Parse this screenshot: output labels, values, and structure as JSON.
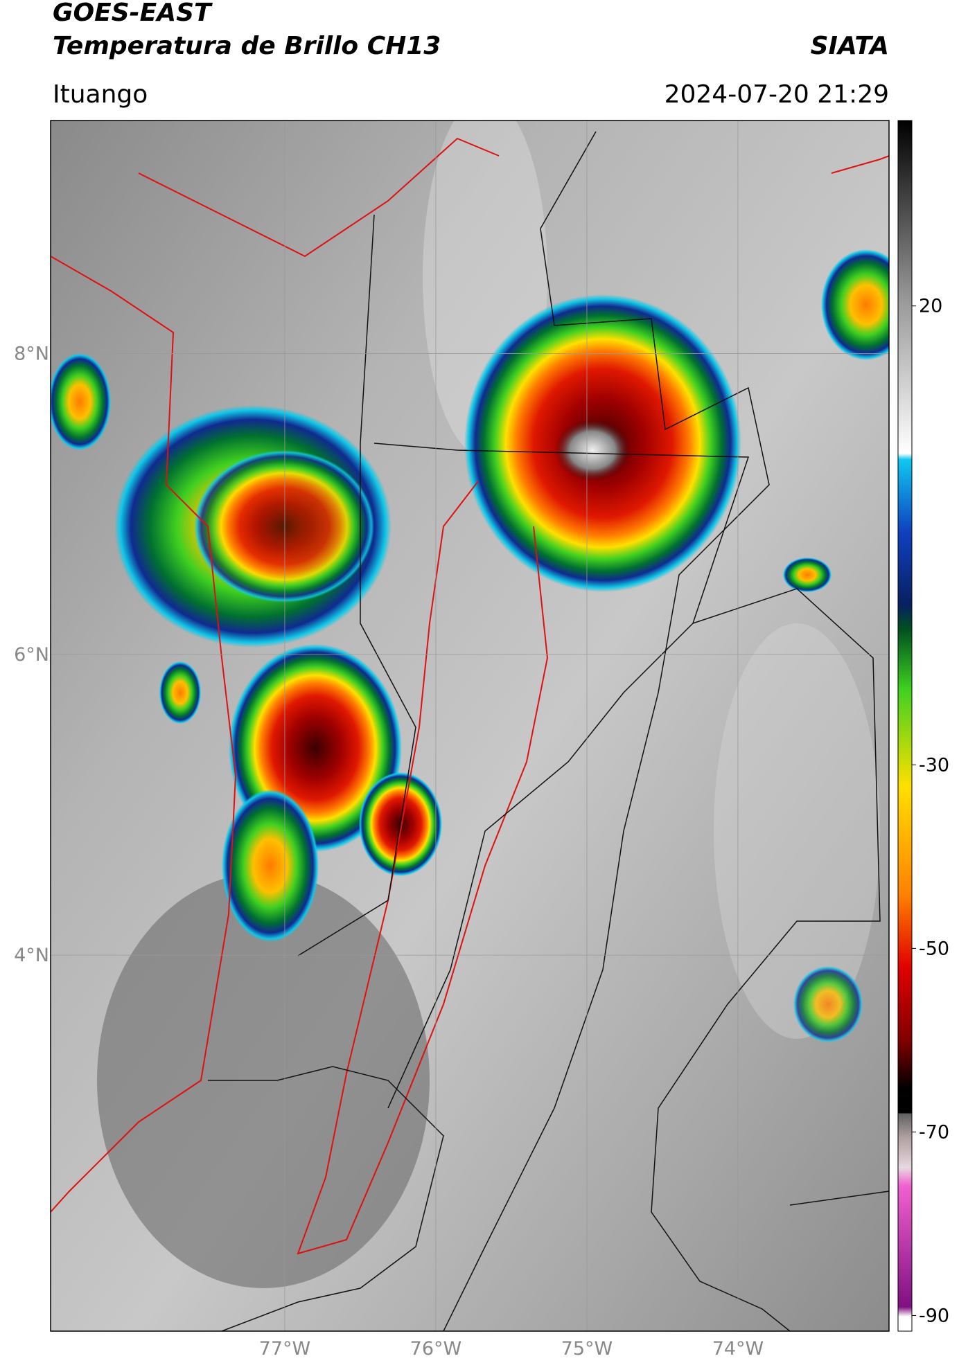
{
  "header": {
    "title": "GOES-EAST",
    "subtitle": "Temperatura de Brillo CH13",
    "agency": "SIATA",
    "location": "Ituango",
    "timestamp": "2024-07-20 21:29"
  },
  "map": {
    "xlim": [
      -78.55,
      -73.0
    ],
    "ylim": [
      1.5,
      9.55
    ],
    "lon_ticks": [
      {
        "value": -77,
        "label": "77°W"
      },
      {
        "value": -76,
        "label": "76°W"
      },
      {
        "value": -75,
        "label": "75°W"
      },
      {
        "value": -74,
        "label": "74°W"
      }
    ],
    "lat_ticks": [
      {
        "value": 8,
        "label": "8°N"
      },
      {
        "value": 6,
        "label": "6°N"
      },
      {
        "value": 4,
        "label": "4°N"
      }
    ],
    "colorbar": {
      "lim": [
        -91.7,
        40.2
      ],
      "ticks": [
        20,
        -30,
        -50,
        -70,
        -90
      ]
    }
  }
}
